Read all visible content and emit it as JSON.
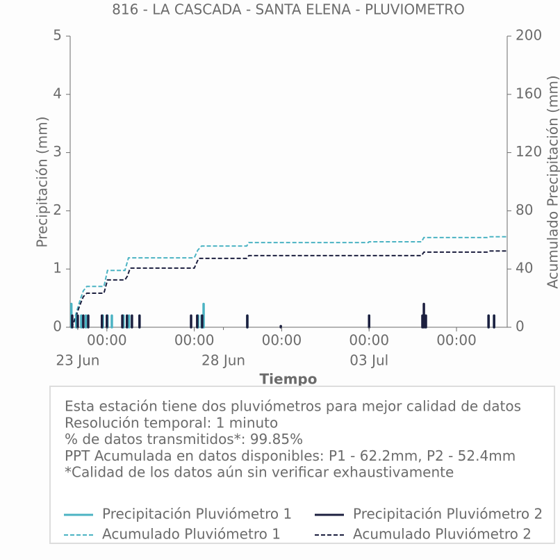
{
  "chart_data": {
    "type": "line",
    "title": "816 - LA CASCADA - SANTA ELENA - PLUVIOMETRO",
    "x_label": "Tiempo",
    "y_label": "Precipitación (mm)",
    "y2_label": "Acumulado Precipitación (mm)",
    "xlim": [
      -1.26,
      13.74
    ],
    "xticks": [
      {
        "value": 0,
        "label": "00:00"
      },
      {
        "value": 3,
        "label": "00:00"
      },
      {
        "value": 6,
        "label": "00:00"
      },
      {
        "value": 9,
        "label": "00:00"
      },
      {
        "value": 12,
        "label": "00:00"
      }
    ],
    "date_labels": [
      {
        "value": -1,
        "label": "23 Jun"
      },
      {
        "value": 4,
        "label": "28 Jun"
      },
      {
        "value": 9,
        "label": "03 Jul"
      }
    ],
    "ylim": [
      0,
      5
    ],
    "yticks": [
      0,
      1,
      2,
      3,
      4,
      5
    ],
    "y2lim": [
      0,
      200
    ],
    "y2ticks": [
      0,
      40,
      80,
      120,
      160,
      200
    ],
    "grid": false,
    "series": [
      {
        "name": "Precipitación Pluviómetro 1",
        "color": "#4bb3c3",
        "kind": "stem",
        "x": [
          -1.22,
          -1.05,
          -0.88,
          -0.72,
          -0.14,
          0.02,
          0.17,
          0.57,
          0.76,
          1.12,
          3.13,
          3.25,
          3.32,
          4.82,
          9.0,
          10.93,
          13.1,
          13.29
        ],
        "values": [
          0.4,
          0.2,
          0.2,
          0.2,
          0.2,
          0.2,
          0.2,
          0.2,
          0.2,
          0.2,
          0.2,
          0.2,
          0.4,
          0.2,
          0.2,
          0.2,
          0.2,
          0.2
        ]
      },
      {
        "name": "Precipitación Pluviómetro 2",
        "color": "#1c1f3f",
        "kind": "stem",
        "x": [
          -1.19,
          -1.0,
          -0.81,
          -0.64,
          -0.17,
          0.0,
          0.53,
          0.69,
          0.86,
          1.12,
          2.89,
          3.1,
          3.27,
          4.82,
          5.97,
          9.0,
          10.83,
          10.88,
          10.95,
          13.1,
          13.29
        ],
        "values": [
          0.2,
          0.2,
          0.2,
          0.2,
          0.2,
          0.2,
          0.2,
          0.2,
          0.2,
          0.2,
          0.2,
          0.2,
          0.2,
          0.2,
          0.02,
          0.2,
          0.2,
          0.4,
          0.2,
          0.2,
          0.2
        ]
      },
      {
        "name": "Acumulado Pluviómetro 1",
        "color": "#4bb3c3",
        "kind": "dashed",
        "axis": "y2",
        "x": [
          -1.26,
          -1.16,
          -1.05,
          -0.93,
          -0.81,
          -0.69,
          -0.1,
          0.02,
          0.62,
          0.74,
          3.0,
          3.12,
          3.25,
          4.8,
          4.87,
          8.97,
          9.0,
          10.8,
          10.88,
          13.05,
          13.12,
          13.74
        ],
        "values": [
          0,
          2,
          10,
          18,
          25,
          28,
          28,
          39,
          39,
          47.7,
          47.7,
          53,
          55.8,
          55.8,
          58.2,
          58.2,
          58.7,
          58.7,
          61.6,
          61.6,
          62.2,
          62.2
        ]
      },
      {
        "name": "Acumulado Pluviómetro 2",
        "color": "#1c1f3f",
        "kind": "dashed",
        "axis": "y2",
        "x": [
          -1.26,
          -1.16,
          -1.05,
          -0.93,
          -0.81,
          -0.69,
          -0.1,
          0.02,
          0.62,
          0.7,
          0.8,
          3.0,
          3.15,
          4.8,
          4.87,
          10.8,
          10.88,
          13.05,
          13.12,
          13.74
        ],
        "values": [
          0,
          2,
          8,
          15,
          21,
          23.4,
          23.4,
          32.5,
          32.5,
          35,
          40.6,
          40.6,
          47.3,
          47.3,
          49.2,
          49.2,
          51.6,
          51.6,
          52.4,
          52.4
        ]
      }
    ],
    "info_lines": [
      "Esta estación tiene dos pluviómetros para mejor calidad de datos",
      "Resolución temporal: 1 minuto",
      "% de datos transmitidos*: 99.85%",
      "PPT Acumulada en datos disponibles: P1 - 62.2mm, P2 - 52.4mm",
      "*Calidad de los datos aún sin verificar exhaustivamente"
    ]
  }
}
